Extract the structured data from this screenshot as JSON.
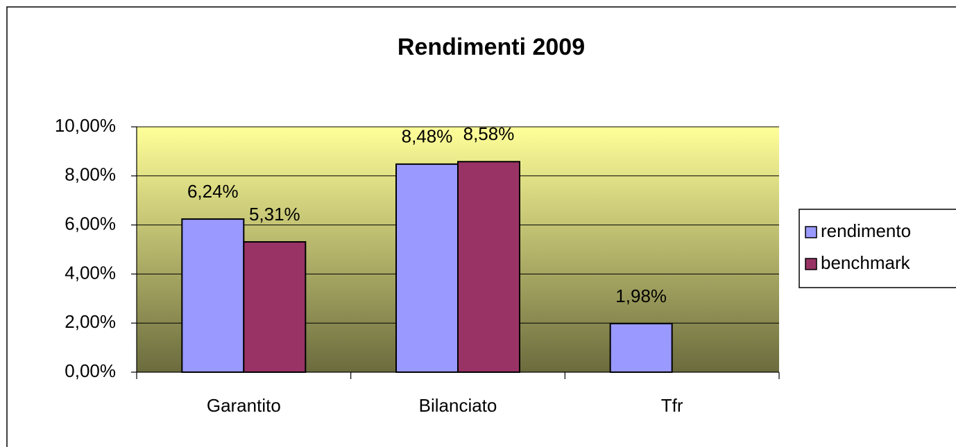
{
  "chart_data": {
    "type": "bar",
    "title": "Rendimenti 2009",
    "categories": [
      "Garantito",
      "Bilanciato",
      "Tfr"
    ],
    "series": [
      {
        "name": "rendimento",
        "color": "#9999ff",
        "values": [
          6.24,
          8.48,
          1.98
        ],
        "value_labels": [
          "6,24%",
          "8,48%",
          "1,98%"
        ]
      },
      {
        "name": "benchmark",
        "color": "#993366",
        "values": [
          5.31,
          8.58,
          null
        ],
        "value_labels": [
          "5,31%",
          "8,58%",
          null
        ]
      }
    ],
    "ylim": [
      0,
      10
    ],
    "yticks": [
      {
        "value": 0,
        "label": "0,00%"
      },
      {
        "value": 2,
        "label": "2,00%"
      },
      {
        "value": 4,
        "label": "4,00%"
      },
      {
        "value": 6,
        "label": "6,00%"
      },
      {
        "value": 8,
        "label": "8,00%"
      },
      {
        "value": 10,
        "label": "10,00%"
      }
    ],
    "grid": true,
    "legend": "right"
  }
}
